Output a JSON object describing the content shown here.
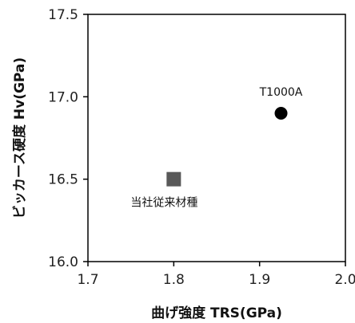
{
  "chart_data": {
    "type": "scatter",
    "title": "",
    "xlabel": "曲げ強度 TRS(GPa)",
    "ylabel": "ビッカース硬度 Hv(GPa)",
    "xlim": [
      1.7,
      2.0
    ],
    "ylim": [
      16.0,
      17.5
    ],
    "x_ticks": [
      "1.7",
      "1.8",
      "1.9",
      "2.0"
    ],
    "y_ticks": [
      "16.0",
      "16.5",
      "17.0",
      "17.5"
    ],
    "grid": false,
    "legend": "none",
    "points": [
      {
        "label": "T1000A",
        "x": 1.925,
        "y": 16.9,
        "marker": "circle",
        "color": "#000000"
      },
      {
        "label": "当社従来材種",
        "x": 1.8,
        "y": 16.5,
        "marker": "square",
        "color": "#595959"
      }
    ]
  }
}
